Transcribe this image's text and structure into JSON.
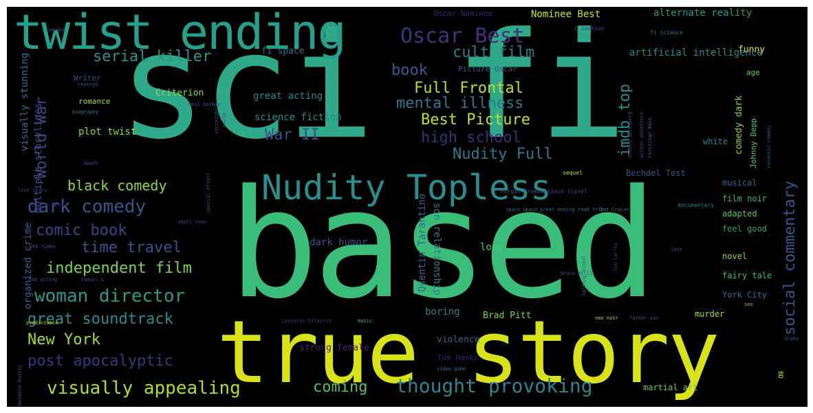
{
  "wordcloud": {
    "background": "#000000",
    "words": [
      {
        "text": "sci fi",
        "color": "#2fa98a"
      },
      {
        "text": "based",
        "color": "#3bbd7a"
      },
      {
        "text": "true story",
        "color": "#d7e21a"
      },
      {
        "text": "twist ending",
        "color": "#26a08c"
      },
      {
        "text": "Nudity Topless",
        "color": "#2a8f8c"
      },
      {
        "text": "Oscar Best",
        "color": "#46307a"
      },
      {
        "text": "serial killer",
        "color": "#30908c"
      },
      {
        "text": "cult film",
        "color": "#2c7d8e"
      },
      {
        "text": "book",
        "color": "#3a5a8c"
      },
      {
        "text": "Full Frontal",
        "color": "#bade2a"
      },
      {
        "text": "mental illness",
        "color": "#2a798e"
      },
      {
        "text": "Best Picture",
        "color": "#c5df25"
      },
      {
        "text": "high school",
        "color": "#3f2d79"
      },
      {
        "text": "War II",
        "color": "#3b4f8a"
      },
      {
        "text": "World War",
        "color": "#404486"
      },
      {
        "text": "Nudity Full",
        "color": "#297a8e"
      },
      {
        "text": "imdb top",
        "color": "#2c8a8c"
      },
      {
        "text": "social commentary",
        "color": "#36578c"
      },
      {
        "text": "black comedy",
        "color": "#8dd645"
      },
      {
        "text": "dark comedy",
        "color": "#3a548c"
      },
      {
        "text": "comic book",
        "color": "#463f84"
      },
      {
        "text": "time travel",
        "color": "#3e4f8a"
      },
      {
        "text": "independent film",
        "color": "#7fd34e"
      },
      {
        "text": "woman director",
        "color": "#2b9a8a"
      },
      {
        "text": "great soundtrack",
        "color": "#2a8d8c"
      },
      {
        "text": "New York",
        "color": "#a5da37"
      },
      {
        "text": "post apocalyptic",
        "color": "#43317b"
      },
      {
        "text": "visually appealing",
        "color": "#b3dc2c"
      },
      {
        "text": "coming",
        "color": "#54c463"
      },
      {
        "text": "thought provoking",
        "color": "#2c848e"
      },
      {
        "text": "Criterion",
        "color": "#8fd744"
      },
      {
        "text": "romance",
        "color": "#a7db35"
      },
      {
        "text": "great acting",
        "color": "#23888e"
      },
      {
        "text": "science fiction",
        "color": "#218f8d"
      },
      {
        "text": "plot twist",
        "color": "#93d741"
      },
      {
        "text": "visually stunning",
        "color": "#2e6f8e"
      },
      {
        "text": "multiple storylines",
        "color": "#3d4e8a"
      },
      {
        "text": "organized crime",
        "color": "#33608d"
      },
      {
        "text": "Quentin Tarantino",
        "color": "#33628d"
      },
      {
        "text": "son relationship",
        "color": "#2c7b8e"
      },
      {
        "text": "dark humor",
        "color": "#3b528b"
      },
      {
        "text": "long",
        "color": "#50c46a"
      },
      {
        "text": "boring",
        "color": "#2c808e"
      },
      {
        "text": "Brad Pitt",
        "color": "#7ad151"
      },
      {
        "text": "violence",
        "color": "#31668e"
      },
      {
        "text": "Tom Hanks",
        "color": "#3c1d6f"
      },
      {
        "text": "strong female",
        "color": "#482374"
      },
      {
        "text": "alternate reality",
        "color": "#1f9a8a"
      },
      {
        "text": "Nominee Best",
        "color": "#d0e11c"
      },
      {
        "text": "Oscar Nominee",
        "color": "#2b2a6f"
      },
      {
        "text": "funny",
        "color": "#e5e419"
      },
      {
        "text": "fi space",
        "color": "#2e6e8e"
      },
      {
        "text": "artificial intelligence",
        "color": "#2a8a8c"
      },
      {
        "text": "Picture Oscar",
        "color": "#3a528b"
      },
      {
        "text": "age",
        "color": "#5ec962"
      },
      {
        "text": "comedy dark",
        "color": "#8bd646"
      },
      {
        "text": "Johnny Depp",
        "color": "#52c569"
      },
      {
        "text": "white",
        "color": "#2c838e"
      },
      {
        "text": "Bechdel Test",
        "color": "#3d518a"
      },
      {
        "text": "musical",
        "color": "#33608d"
      },
      {
        "text": "film noir",
        "color": "#35b779"
      },
      {
        "text": "adapted",
        "color": "#56c667"
      },
      {
        "text": "feel good",
        "color": "#2a9a8a"
      },
      {
        "text": "novel",
        "color": "#8fd744"
      },
      {
        "text": "fairy tale",
        "color": "#3bbb75"
      },
      {
        "text": "York City",
        "color": "#2f6b8e"
      },
      {
        "text": "murder",
        "color": "#a2da37"
      },
      {
        "text": "martial art",
        "color": "#6ccd5a"
      },
      {
        "text": "Writer",
        "color": "#3f4788"
      },
      {
        "text": "Morgan Freeman",
        "color": "#39558c"
      },
      {
        "text": "space travel",
        "color": "#3f4889"
      },
      {
        "text": "space space",
        "color": "#2f6c8e"
      },
      {
        "text": "great ending",
        "color": "#33638d"
      },
      {
        "text": "road trip",
        "color": "#2d718e"
      },
      {
        "text": "Tom Cruise",
        "color": "#31688e"
      },
      {
        "text": "documentary",
        "color": "#287c8e"
      },
      {
        "text": "sequel",
        "color": "#c2df23"
      },
      {
        "text": "remake",
        "color": "#414487"
      },
      {
        "text": "L Jackson",
        "color": "#3e4989"
      },
      {
        "text": "fi science",
        "color": "#2c718e"
      },
      {
        "text": "revenge",
        "color": "#3b528b"
      },
      {
        "text": "Neil Gaiman",
        "color": "#3d4d8a"
      },
      {
        "text": "biography",
        "color": "#2b758e"
      },
      {
        "text": "death",
        "color": "#3b528b"
      },
      {
        "text": "female lead",
        "color": "#3f1f72"
      },
      {
        "text": "love story",
        "color": "#433e85"
      },
      {
        "text": "small town",
        "color": "#3e4a89"
      },
      {
        "text": "DVD Video",
        "color": "#3b528b"
      },
      {
        "text": "bad acting",
        "color": "#3e4c8a"
      },
      {
        "text": "Samuel L",
        "color": "#3f4788"
      },
      {
        "text": "predictable",
        "color": "#c0df25"
      },
      {
        "text": "Leonardo DiCaprio",
        "color": "#46327e"
      },
      {
        "text": "music",
        "color": "#4ac16d"
      },
      {
        "text": "neo noir",
        "color": "#b5de2b"
      },
      {
        "text": "father son",
        "color": "#3b528b"
      },
      {
        "text": "video game",
        "color": "#2e6f8e"
      },
      {
        "text": "Bruce Willis",
        "color": "#3f4889"
      },
      {
        "text": "Jim Carrey",
        "color": "#453882"
      },
      {
        "text": "Steven Spielberg",
        "color": "#404688"
      },
      {
        "text": "action adventure",
        "color": "#414487"
      },
      {
        "text": "Christian Bale",
        "color": "#33628d"
      },
      {
        "text": "romantic comedy",
        "color": "#3b528b"
      },
      {
        "text": "drama",
        "color": "#3e4a89"
      },
      {
        "text": "BD",
        "color": "#d8e219"
      },
      {
        "text": "Notable Nudity",
        "color": "#3b528b"
      },
      {
        "text": "talking animal",
        "color": "#31688e"
      },
      {
        "text": "incredibly",
        "color": "#3b528b"
      },
      {
        "text": "special effect",
        "color": "#3e4989"
      },
      {
        "text": "movie",
        "color": "#3e4a89"
      },
      {
        "text": "love",
        "color": "#3e4a89"
      },
      {
        "text": "see",
        "color": "#7ad151"
      }
    ]
  }
}
